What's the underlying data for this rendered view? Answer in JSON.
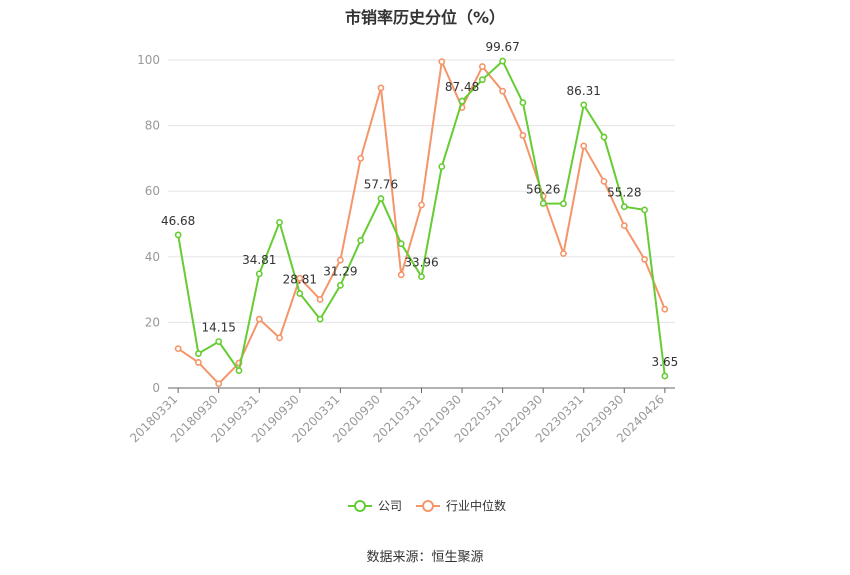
{
  "title": "市销率历史分位（%）",
  "source": "数据来源：恒生聚源",
  "colors": {
    "company": "#66cc33",
    "industry": "#f4956a",
    "grid": "#e5e5ea",
    "axis": "#999999",
    "text": "#333333"
  },
  "chart_data": {
    "type": "line",
    "title": "市销率历史分位（%）",
    "ylim": [
      0,
      100
    ],
    "yticks": [
      "0",
      "20",
      "40",
      "60",
      "80",
      "100"
    ],
    "grid": true,
    "legend_position": "bottom",
    "x": [
      "20180331",
      "20180630",
      "20180930",
      "20181231",
      "20190331",
      "20190630",
      "20190930",
      "20191231",
      "20200331",
      "20200630",
      "20200930",
      "20201231",
      "20210331",
      "20210630",
      "20210930",
      "20211231",
      "20220331",
      "20220630",
      "20220930",
      "20221231",
      "20230331",
      "20230630",
      "20230930",
      "20231231",
      "20240426"
    ],
    "x_tick_labels": [
      "20180331",
      "20180930",
      "20190331",
      "20190930",
      "20200331",
      "20200930",
      "20210331",
      "20210930",
      "20220331",
      "20220930",
      "20230331",
      "20230930",
      "20240426"
    ],
    "series": [
      {
        "name": "公司",
        "color": "#66cc33",
        "values": [
          46.68,
          10.5,
          14.15,
          5.3,
          34.81,
          50.5,
          28.81,
          21.0,
          31.29,
          45.0,
          57.76,
          44.0,
          33.96,
          67.5,
          87.48,
          94.0,
          99.67,
          87.0,
          56.26,
          56.2,
          86.31,
          76.5,
          55.28,
          54.3,
          3.65
        ],
        "labels": {
          "0": "46.68",
          "2": "14.15",
          "4": "34.81",
          "6": "28.81",
          "8": "31.29",
          "10": "57.76",
          "12": "33.96",
          "14": "87.48",
          "16": "99.67",
          "18": "56.26",
          "20": "86.31",
          "22": "55.28",
          "24": "3.65"
        }
      },
      {
        "name": "行业中位数",
        "color": "#f4956a",
        "values": [
          12.0,
          7.8,
          1.3,
          7.6,
          21.0,
          15.3,
          33.5,
          27.0,
          39.0,
          70.0,
          91.5,
          34.5,
          55.8,
          99.5,
          85.5,
          98.0,
          90.5,
          77.0,
          58.5,
          41.0,
          73.8,
          63.0,
          49.5,
          39.2,
          24.0
        ]
      }
    ]
  },
  "legend": [
    {
      "label": "公司",
      "color": "#66cc33"
    },
    {
      "label": "行业中位数",
      "color": "#f4956a"
    }
  ]
}
